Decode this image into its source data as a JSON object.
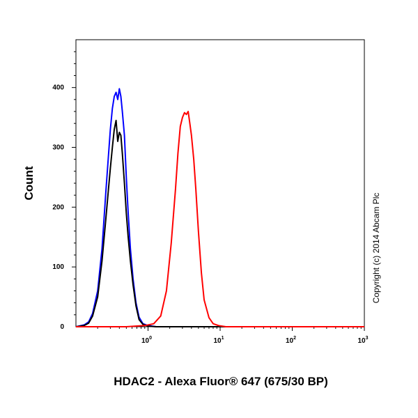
{
  "chart_data": {
    "type": "line",
    "xlabel": "HDAC2 - Alexa Fluor® 647 (675/30 BP)",
    "ylabel": "Count",
    "x_scale": "log",
    "xlim": [
      0.1,
      1000
    ],
    "ylim": [
      0,
      480
    ],
    "x_ticks": [
      {
        "value": 1,
        "base": "10",
        "exp": "0"
      },
      {
        "value": 10,
        "base": "10",
        "exp": "1"
      },
      {
        "value": 100,
        "base": "10",
        "exp": "2"
      },
      {
        "value": 1000,
        "base": "10",
        "exp": "3"
      }
    ],
    "y_ticks": [
      0,
      100,
      200,
      300,
      400
    ],
    "grid": false,
    "annotation": "Copyright (c) 2014 Abcam Plc",
    "series": [
      {
        "color": "#0000ff",
        "x": [
          0.1,
          0.13,
          0.15,
          0.17,
          0.2,
          0.23,
          0.26,
          0.28,
          0.3,
          0.32,
          0.34,
          0.36,
          0.38,
          0.4,
          0.42,
          0.44,
          0.47,
          0.5,
          0.53,
          0.57,
          0.62,
          0.68,
          0.75,
          0.85,
          1.0,
          1.3,
          2.0,
          10,
          100,
          1000
        ],
        "y": [
          0,
          3,
          8,
          22,
          60,
          130,
          225,
          280,
          330,
          365,
          385,
          392,
          380,
          398,
          385,
          360,
          320,
          250,
          190,
          130,
          80,
          40,
          16,
          5,
          2,
          0,
          0,
          0,
          0,
          0
        ]
      },
      {
        "color": "#000000",
        "x": [
          0.1,
          0.13,
          0.15,
          0.17,
          0.2,
          0.23,
          0.26,
          0.28,
          0.3,
          0.32,
          0.34,
          0.36,
          0.38,
          0.4,
          0.42,
          0.44,
          0.47,
          0.5,
          0.53,
          0.57,
          0.62,
          0.68,
          0.75,
          0.85,
          1.0,
          1.3,
          2.0,
          10,
          100,
          1000
        ],
        "y": [
          0,
          2,
          6,
          18,
          50,
          110,
          180,
          225,
          265,
          300,
          330,
          345,
          310,
          325,
          320,
          290,
          240,
          190,
          150,
          110,
          70,
          35,
          12,
          4,
          1,
          0,
          0,
          0,
          0,
          0
        ]
      },
      {
        "color": "#ff0000",
        "x": [
          0.1,
          0.5,
          0.9,
          1.2,
          1.5,
          1.8,
          2.1,
          2.4,
          2.6,
          2.8,
          3.0,
          3.2,
          3.4,
          3.6,
          3.8,
          4.0,
          4.3,
          4.6,
          5.0,
          5.5,
          6.0,
          7.0,
          8.0,
          9.5,
          12,
          100,
          1000
        ],
        "y": [
          0,
          0,
          2,
          5,
          18,
          60,
          140,
          230,
          290,
          335,
          350,
          358,
          355,
          360,
          340,
          320,
          280,
          230,
          160,
          90,
          45,
          15,
          5,
          2,
          0,
          0,
          0
        ]
      }
    ]
  }
}
